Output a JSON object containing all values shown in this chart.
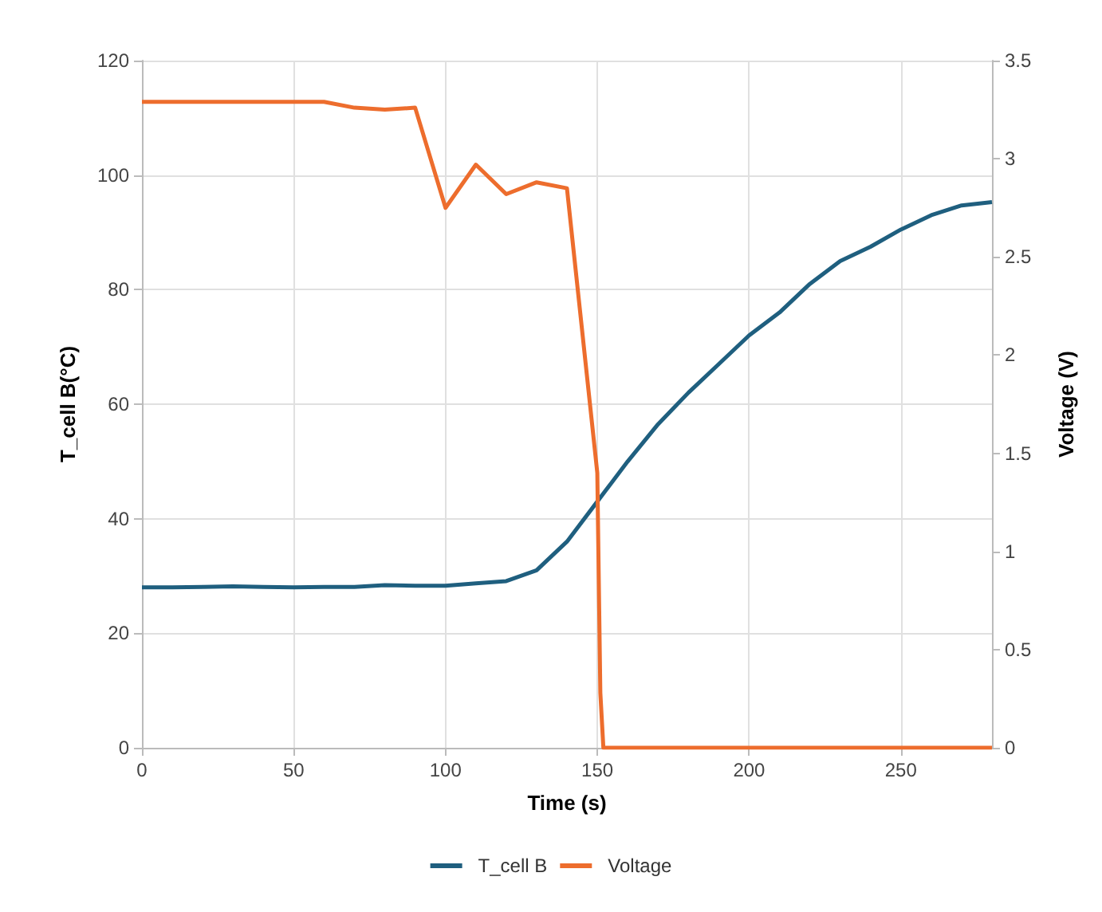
{
  "chart_data": {
    "type": "line",
    "xlabel": "Time (s)",
    "ylabel": "T_cell B(°C)",
    "y2label": "Voltage (V)",
    "xlim": [
      0,
      280
    ],
    "xticks": [
      0,
      50,
      100,
      150,
      200,
      250
    ],
    "ylim": [
      0,
      120
    ],
    "yticks": [
      0,
      20,
      40,
      60,
      80,
      100,
      120
    ],
    "y2lim": [
      0,
      3.5
    ],
    "y2ticks": [
      0,
      0.5,
      1,
      1.5,
      2,
      2.5,
      3,
      3.5
    ],
    "grid": true,
    "legend": "bottom",
    "marker": "none",
    "line_style": "solid",
    "series": [
      {
        "name": "T_cell B",
        "color": "#1f5f7f",
        "x": [
          0,
          10,
          20,
          30,
          40,
          50,
          60,
          70,
          80,
          90,
          100,
          110,
          120,
          130,
          140,
          150,
          160,
          170,
          180,
          190,
          200,
          210,
          220,
          230,
          240,
          250,
          260,
          270,
          280
        ],
        "values": [
          28,
          28,
          28.1,
          28.2,
          28.1,
          28,
          28.1,
          28.1,
          28.4,
          28.3,
          28.3,
          28.7,
          29.1,
          31,
          36,
          43,
          50,
          56.5,
          62,
          67,
          72,
          76,
          81,
          85,
          87.5,
          90.5,
          93,
          94.7,
          95.3
        ]
      },
      {
        "name": "Voltage",
        "color": "#ed6d2d",
        "axis": "y2",
        "x": [
          0,
          10,
          20,
          30,
          40,
          50,
          60,
          70,
          80,
          90,
          100,
          110,
          120,
          130,
          140,
          150,
          151,
          152,
          160,
          170,
          180,
          190,
          200,
          210,
          220,
          230,
          240,
          250,
          260,
          270,
          280
        ],
        "values": [
          3.29,
          3.29,
          3.29,
          3.29,
          3.29,
          3.29,
          3.29,
          3.26,
          3.25,
          3.26,
          2.75,
          2.97,
          2.82,
          2.88,
          2.85,
          1.4,
          0.28,
          0,
          0,
          0,
          0,
          0,
          0,
          0,
          0,
          0,
          0,
          0,
          0,
          0,
          0
        ]
      }
    ]
  }
}
